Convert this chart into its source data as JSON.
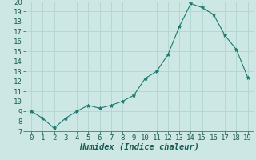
{
  "x": [
    0,
    1,
    2,
    3,
    4,
    5,
    6,
    7,
    8,
    9,
    10,
    11,
    12,
    13,
    14,
    15,
    16,
    17,
    18,
    19
  ],
  "y": [
    9.0,
    8.3,
    7.3,
    8.3,
    9.0,
    9.6,
    9.3,
    9.6,
    10.0,
    10.6,
    12.3,
    13.0,
    14.7,
    17.5,
    19.8,
    19.4,
    18.7,
    16.6,
    15.2,
    12.4
  ],
  "line_color": "#1a7a6e",
  "marker": "*",
  "marker_size": 3.5,
  "bg_color": "#cde8e4",
  "grid_color": "#b0d4ce",
  "xlabel": "Humidex (Indice chaleur)",
  "ylim": [
    7,
    20
  ],
  "xlim": [
    -0.5,
    19.5
  ],
  "yticks": [
    7,
    8,
    9,
    10,
    11,
    12,
    13,
    14,
    15,
    16,
    17,
    18,
    19,
    20
  ],
  "xticks": [
    0,
    1,
    2,
    3,
    4,
    5,
    6,
    7,
    8,
    9,
    10,
    11,
    12,
    13,
    14,
    15,
    16,
    17,
    18,
    19
  ],
  "font_size": 6.5,
  "label_font_size": 7.5
}
